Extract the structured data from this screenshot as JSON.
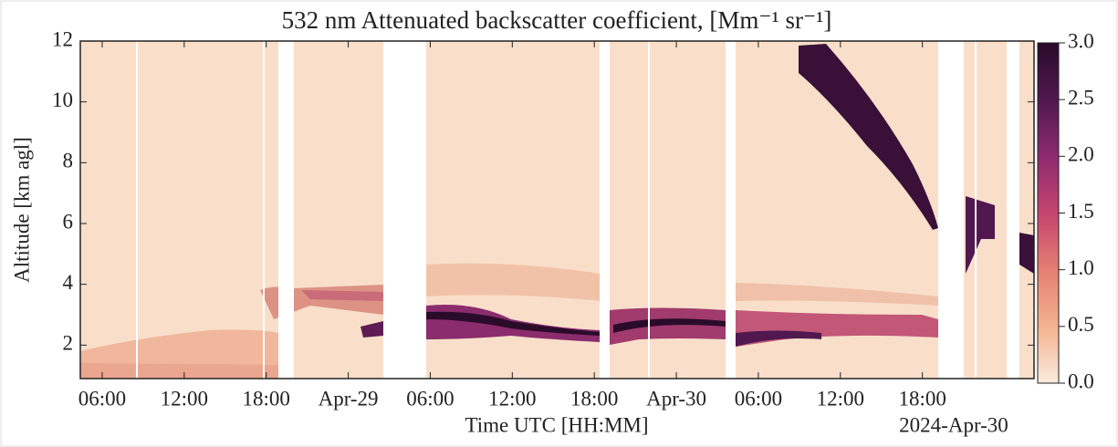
{
  "chart_data": {
    "type": "heatmap",
    "title": "532 nm Attenuated backscatter coefficient, [Mm⁻¹ sr⁻¹]",
    "xlabel": "Time UTC [HH:MM]",
    "ylabel": "Altitude [km agl]",
    "annotation": "2024-Apr-30",
    "xlim": [
      "2024-04-28T04:24",
      "2024-05-01T02:10"
    ],
    "xticks": [
      {
        "value": "2024-04-28T06:00",
        "label": "06:00"
      },
      {
        "value": "2024-04-28T12:00",
        "label": "12:00"
      },
      {
        "value": "2024-04-28T18:00",
        "label": "18:00"
      },
      {
        "value": "2024-04-29T00:00",
        "label": "Apr-29"
      },
      {
        "value": "2024-04-29T06:00",
        "label": "06:00"
      },
      {
        "value": "2024-04-29T12:00",
        "label": "12:00"
      },
      {
        "value": "2024-04-29T18:00",
        "label": "18:00"
      },
      {
        "value": "2024-04-30T00:00",
        "label": "Apr-30"
      },
      {
        "value": "2024-04-30T06:00",
        "label": "06:00"
      },
      {
        "value": "2024-04-30T12:00",
        "label": "12:00"
      },
      {
        "value": "2024-04-30T18:00",
        "label": "18:00"
      }
    ],
    "ylim": [
      0.9,
      12
    ],
    "yticks": [
      2,
      4,
      6,
      8,
      10,
      12
    ],
    "clim": [
      0,
      3
    ],
    "cticks": [
      {
        "value": 0,
        "label": "0.0"
      },
      {
        "value": 0.5,
        "label": "0.5"
      },
      {
        "value": 1,
        "label": "1.0"
      },
      {
        "value": 1.5,
        "label": "1.5"
      },
      {
        "value": 2,
        "label": "2.0"
      },
      {
        "value": 2.5,
        "label": "2.5"
      },
      {
        "value": 3,
        "label": "3.0"
      }
    ],
    "colormap": [
      "#faebdd",
      "#f3b28f",
      "#e57f72",
      "#c4446e",
      "#8d2a6f",
      "#50184f",
      "#2a0b2a"
    ]
  }
}
